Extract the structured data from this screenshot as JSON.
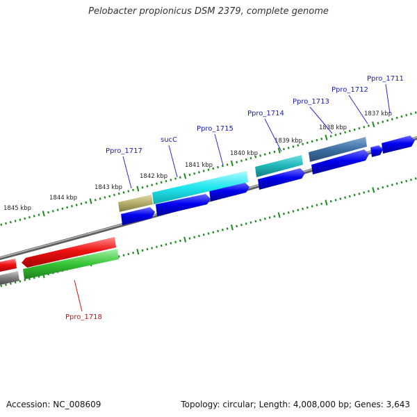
{
  "title": "Pelobacter propionicus DSM 2379, complete genome",
  "footer": {
    "accession": "Accession: NC_008609",
    "summary": "Topology: circular; Length: 4,008,000 bp; Genes: 3,643"
  },
  "ticks": [
    "1837 kbp",
    "1838 kbp",
    "1839 kbp",
    "1840 kbp",
    "1841 kbp",
    "1842 kbp",
    "1843 kbp",
    "1844 kbp",
    "1845 kbp"
  ],
  "gene_labels": [
    {
      "text": "Ppro_1711",
      "color": "#1a1aa8"
    },
    {
      "text": "Ppro_1712",
      "color": "#1a1aa8"
    },
    {
      "text": "Ppro_1713",
      "color": "#1a1aa8"
    },
    {
      "text": "Ppro_1714",
      "color": "#1a1aa8"
    },
    {
      "text": "Ppro_1715",
      "color": "#1a1aa8"
    },
    {
      "text": "sucC",
      "color": "#1a1aa8"
    },
    {
      "text": "Ppro_1717",
      "color": "#1a1aa8"
    },
    {
      "text": "Ppro_1718",
      "color": "#c41414"
    }
  ],
  "colors": {
    "cds_forward": "#0000e6",
    "tick_marks": "#1a8a1a",
    "backbone": "#888888",
    "gene_cyan": "#1ee6ee",
    "gene_teal": "#1fb5b8",
    "gene_steel": "#3d6fa3",
    "gene_olive": "#b3ad6a",
    "gene_red": "#ee1111",
    "gene_green": "#35c435",
    "gene_grey": "#7a7a7a"
  }
}
